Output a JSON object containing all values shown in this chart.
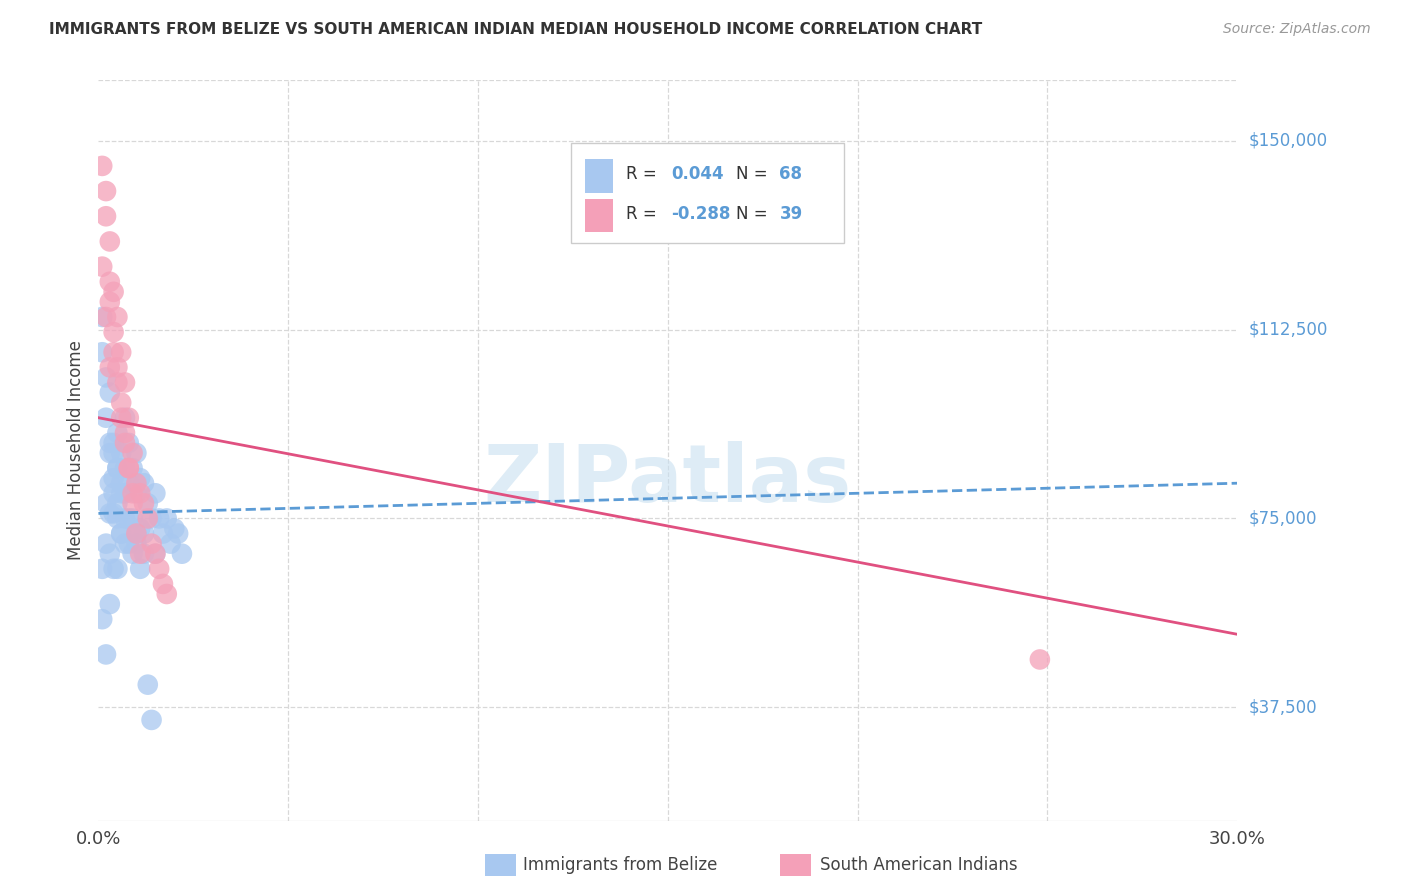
{
  "title": "IMMIGRANTS FROM BELIZE VS SOUTH AMERICAN INDIAN MEDIAN HOUSEHOLD INCOME CORRELATION CHART",
  "source": "Source: ZipAtlas.com",
  "ylabel": "Median Household Income",
  "yticks": [
    37500,
    75000,
    112500,
    150000
  ],
  "ytick_labels": [
    "$37,500",
    "$75,000",
    "$112,500",
    "$150,000"
  ],
  "xlim": [
    0.0,
    0.3
  ],
  "ylim": [
    15000,
    162000
  ],
  "belize_color": "#a8c8f0",
  "belize_line_color": "#5b9bd5",
  "sa_color": "#f4a0b8",
  "sa_line_color": "#e05080",
  "background_color": "#ffffff",
  "grid_color": "#d8d8d8",
  "watermark": "ZIPatlas",
  "watermark_color": "#c8e0f0",
  "belize_N": 68,
  "sa_N": 39,
  "belize_R": 0.044,
  "sa_R": -0.288,
  "belize_x": [
    0.001,
    0.001,
    0.002,
    0.002,
    0.002,
    0.003,
    0.003,
    0.003,
    0.003,
    0.003,
    0.004,
    0.004,
    0.004,
    0.004,
    0.005,
    0.005,
    0.005,
    0.005,
    0.006,
    0.006,
    0.006,
    0.007,
    0.007,
    0.007,
    0.008,
    0.008,
    0.008,
    0.009,
    0.009,
    0.01,
    0.01,
    0.01,
    0.011,
    0.011,
    0.012,
    0.012,
    0.013,
    0.014,
    0.015,
    0.015,
    0.016,
    0.017,
    0.018,
    0.019,
    0.02,
    0.021,
    0.022,
    0.001,
    0.001,
    0.002,
    0.002,
    0.003,
    0.003,
    0.004,
    0.004,
    0.005,
    0.005,
    0.006,
    0.006,
    0.007,
    0.007,
    0.008,
    0.009,
    0.01,
    0.011,
    0.012,
    0.013,
    0.014
  ],
  "belize_y": [
    65000,
    55000,
    78000,
    70000,
    48000,
    88000,
    82000,
    76000,
    68000,
    58000,
    90000,
    83000,
    76000,
    65000,
    92000,
    85000,
    78000,
    65000,
    88000,
    80000,
    72000,
    95000,
    85000,
    75000,
    90000,
    82000,
    70000,
    85000,
    75000,
    88000,
    80000,
    70000,
    83000,
    73000,
    82000,
    72000,
    78000,
    75000,
    80000,
    68000,
    75000,
    72000,
    75000,
    70000,
    73000,
    72000,
    68000,
    115000,
    108000,
    103000,
    95000,
    100000,
    90000,
    88000,
    80000,
    85000,
    75000,
    82000,
    72000,
    80000,
    70000,
    75000,
    68000,
    72000,
    65000,
    68000,
    42000,
    35000
  ],
  "sa_x": [
    0.001,
    0.001,
    0.002,
    0.002,
    0.003,
    0.003,
    0.003,
    0.004,
    0.004,
    0.005,
    0.005,
    0.006,
    0.006,
    0.007,
    0.007,
    0.008,
    0.008,
    0.009,
    0.009,
    0.01,
    0.011,
    0.012,
    0.013,
    0.014,
    0.015,
    0.016,
    0.017,
    0.018,
    0.002,
    0.003,
    0.004,
    0.005,
    0.006,
    0.007,
    0.008,
    0.009,
    0.01,
    0.011,
    0.248
  ],
  "sa_y": [
    145000,
    125000,
    140000,
    115000,
    130000,
    118000,
    105000,
    120000,
    108000,
    115000,
    102000,
    108000,
    95000,
    102000,
    90000,
    95000,
    85000,
    88000,
    80000,
    82000,
    80000,
    78000,
    75000,
    70000,
    68000,
    65000,
    62000,
    60000,
    135000,
    122000,
    112000,
    105000,
    98000,
    92000,
    85000,
    78000,
    72000,
    68000,
    47000
  ],
  "belize_line_x0": 0.0,
  "belize_line_x1": 0.3,
  "belize_line_y0": 76000,
  "belize_line_y1": 82000,
  "sa_line_x0": 0.0,
  "sa_line_x1": 0.3,
  "sa_line_y0": 95000,
  "sa_line_y1": 52000
}
